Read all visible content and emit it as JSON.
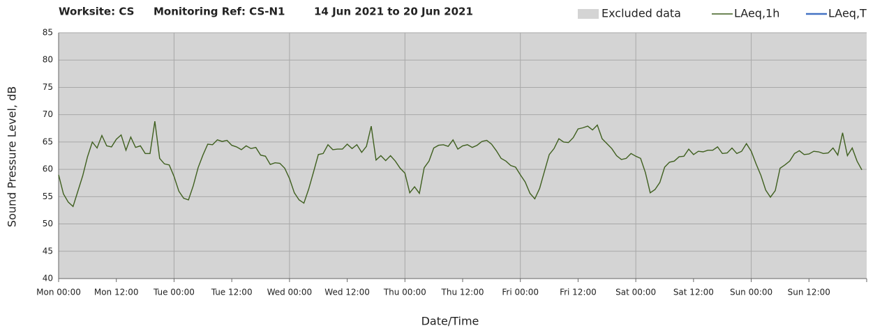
{
  "chart_data": {
    "type": "line",
    "title_parts": [
      "Worksite: CS",
      "Monitoring Ref: CS-N1",
      "14 Jun 2021 to 20 Jun 2021"
    ],
    "xlabel": "Date/Time",
    "ylabel": "Sound Pressure Level, dB",
    "excluded_data": {
      "name": "Excluded data",
      "color": "#d4d4d4"
    },
    "x": [
      0,
      1,
      2,
      3,
      4,
      5,
      6,
      7,
      8,
      9,
      10,
      11,
      12,
      13,
      14,
      15,
      16,
      17,
      18,
      19,
      20,
      21,
      22,
      23,
      24,
      25,
      26,
      27,
      28,
      29,
      30,
      31,
      32,
      33,
      34,
      35,
      36,
      37,
      38,
      39,
      40,
      41,
      42,
      43,
      44,
      45,
      46,
      47,
      48,
      49,
      50,
      51,
      52,
      53,
      54,
      55,
      56,
      57,
      58,
      59,
      60,
      61,
      62,
      63,
      64,
      65,
      66,
      67,
      68,
      69,
      70,
      71,
      72,
      73,
      74,
      75,
      76,
      77,
      78,
      79,
      80,
      81,
      82,
      83,
      84,
      85,
      86,
      87,
      88,
      89,
      90,
      91,
      92,
      93,
      94,
      95,
      96,
      97,
      98,
      99,
      100,
      101,
      102,
      103,
      104,
      105,
      106,
      107,
      108,
      109,
      110,
      111,
      112,
      113,
      114,
      115,
      116,
      117,
      118,
      119,
      120,
      121,
      122,
      123,
      124,
      125,
      126,
      127,
      128,
      129,
      130,
      131,
      132,
      133,
      134,
      135,
      136,
      137,
      138,
      139,
      140,
      141,
      142,
      143,
      144,
      145,
      146,
      147,
      148,
      149,
      150,
      151,
      152,
      153,
      154,
      155,
      156,
      157,
      158,
      159,
      160,
      161,
      162,
      163,
      164,
      165,
      166,
      167
    ],
    "series": [
      {
        "name": "LAeq,1h",
        "color": "#3f5f1f",
        "values": [
          59,
          55.5,
          54,
          53.2,
          56,
          58.8,
          62.3,
          65,
          63.9,
          66.2,
          64.3,
          64.1,
          65.5,
          66.3,
          63.5,
          65.9,
          64,
          64.3,
          62.9,
          62.9,
          68.8,
          62,
          61,
          60.8,
          58.7,
          56,
          54.7,
          54.4,
          57,
          60.3,
          62.6,
          64.6,
          64.5,
          65.4,
          65.1,
          65.3,
          64.4,
          64.1,
          63.6,
          64.3,
          63.8,
          64,
          62.6,
          62.4,
          60.9,
          61.2,
          61.1,
          60.2,
          58.3,
          55.7,
          54.4,
          53.8,
          56.4,
          59.5,
          62.7,
          62.9,
          64.5,
          63.6,
          63.7,
          63.7,
          64.6,
          63.8,
          64.5,
          63.1,
          64.2,
          67.9,
          61.7,
          62.5,
          61.6,
          62.5,
          61.5,
          60.2,
          59.3,
          55.7,
          56.8,
          55.6,
          60.3,
          61.5,
          63.9,
          64.4,
          64.5,
          64.2,
          65.4,
          63.7,
          64.3,
          64.5,
          64,
          64.4,
          65.1,
          65.3,
          64.6,
          63.4,
          62,
          61.5,
          60.7,
          60.4,
          59,
          57.7,
          55.6,
          54.6,
          56.5,
          59.6,
          62.7,
          63.8,
          65.6,
          65,
          64.9,
          65.8,
          67.4,
          67.6,
          67.9,
          67.2,
          68.1,
          65.6,
          64.7,
          63.8,
          62.5,
          61.8,
          62,
          62.9,
          62.4,
          62,
          59.4,
          55.7,
          56.3,
          57.6,
          60.4,
          61.3,
          61.5,
          62.3,
          62.4,
          63.7,
          62.7,
          63.3,
          63.2,
          63.5,
          63.5,
          64.1,
          62.9,
          63,
          63.9,
          62.9,
          63.3,
          64.7,
          63.3,
          61,
          58.9,
          56.2,
          54.9,
          56.1,
          60.2,
          60.8,
          61.5,
          62.9,
          63.4,
          62.7,
          62.8,
          63.3,
          63.2,
          62.9,
          63,
          63.9,
          62.6,
          66.7,
          62.5,
          63.9,
          61.5,
          59.9
        ]
      },
      {
        "name": "LAeq,T",
        "color": "#4472c4",
        "values": [
          null,
          null,
          null,
          null,
          null,
          null,
          null,
          null,
          null,
          null,
          null,
          null,
          null,
          null,
          null,
          null,
          null,
          null,
          null,
          null,
          null,
          null,
          null,
          null,
          null,
          null,
          null,
          null,
          null,
          null,
          null,
          null,
          null,
          null,
          null,
          null,
          null,
          null,
          null,
          null,
          null,
          null,
          null,
          null,
          null,
          null,
          null,
          null,
          null,
          null,
          null,
          null,
          null,
          null,
          null,
          null,
          null,
          null,
          null,
          null,
          null,
          null,
          null,
          null,
          null,
          null,
          null,
          null,
          null,
          null,
          null,
          null,
          null,
          null,
          null,
          null,
          null,
          null,
          null,
          null,
          null,
          null,
          null,
          null,
          null,
          null,
          null,
          null,
          null,
          null,
          null,
          null,
          null,
          null,
          null,
          null,
          null,
          null,
          null,
          null,
          null,
          null,
          null,
          null,
          null,
          null,
          null,
          null,
          null,
          null,
          null,
          null,
          null,
          null,
          null,
          null,
          null,
          null,
          null,
          null,
          null,
          null,
          null,
          null,
          null,
          null,
          null,
          null,
          null,
          null,
          null,
          null,
          null,
          null,
          null,
          null,
          null,
          null,
          null,
          null,
          null,
          null,
          null,
          null,
          null,
          null,
          null,
          null,
          null,
          null,
          null,
          null,
          null,
          null,
          null,
          null,
          null,
          null,
          null,
          null,
          null,
          null,
          null,
          null,
          null,
          null,
          null,
          null
        ]
      }
    ],
    "xlim": [
      0,
      168
    ],
    "xticks": [
      {
        "value": 0,
        "label": "Mon 00:00"
      },
      {
        "value": 12,
        "label": "Mon 12:00"
      },
      {
        "value": 24,
        "label": "Tue 00:00"
      },
      {
        "value": 36,
        "label": "Tue 12:00"
      },
      {
        "value": 48,
        "label": "Wed 00:00"
      },
      {
        "value": 60,
        "label": "Wed 12:00"
      },
      {
        "value": 72,
        "label": "Thu 00:00"
      },
      {
        "value": 84,
        "label": "Thu 12:00"
      },
      {
        "value": 96,
        "label": "Fri 00:00"
      },
      {
        "value": 108,
        "label": "Fri 12:00"
      },
      {
        "value": 120,
        "label": "Sat 00:00"
      },
      {
        "value": 132,
        "label": "Sat 12:00"
      },
      {
        "value": 144,
        "label": "Sun 00:00"
      },
      {
        "value": 156,
        "label": "Sun 12:00"
      }
    ],
    "ylim": [
      40,
      85
    ],
    "yticks": [
      40,
      45,
      50,
      55,
      60,
      65,
      70,
      75,
      80,
      85
    ],
    "grid": true
  }
}
